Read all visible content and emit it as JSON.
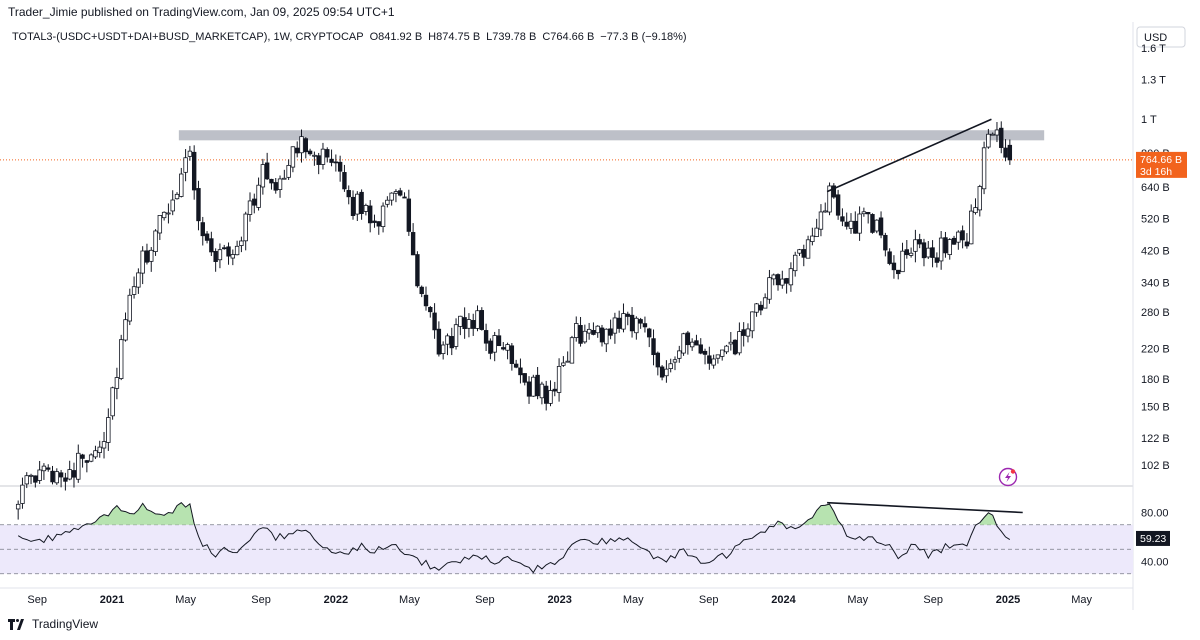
{
  "publisher_line": "Trader_Jimie published on TradingView.com, Jan 09, 2025 09:54 UTC+1",
  "legend": {
    "symbol": "TOTAL3-(USDC+USDT+DAI+BUSD_MARKETCAP), 1W, CRYPTOCAP",
    "o": "O841.92 B",
    "h": "H874.75 B",
    "l": "L739.78 B",
    "c": "C764.66 B",
    "change": "−77.3 B (−9.18%)"
  },
  "currency": "USD",
  "price_tag": {
    "value": "764.66 B",
    "countdown": "3d 16h"
  },
  "rsi_tag": "59.23",
  "footer_brand": "TradingView",
  "colors": {
    "up": "#ffffff",
    "down": "#131722",
    "rsi_line": "#131722",
    "rsi_band": "#ede9fb",
    "ob_fill": "#b7e3b0",
    "price_tag": "#f2631d",
    "resistance": "#b2b5be"
  },
  "icons": [
    "tradingview-logo-icon",
    "lightning-icon"
  ],
  "chart_data": [
    {
      "type": "candlestick",
      "scale": "log",
      "timeframe": "1W",
      "ylim": [
        90,
        1900
      ],
      "y_ticks": [
        "1.6 T",
        "1.3 T",
        "1 T",
        "800 B",
        "640 B",
        "520 B",
        "420 B",
        "340 B",
        "280 B",
        "220 B",
        "180 B",
        "150 B",
        "122 B",
        "102 B"
      ],
      "y_tick_values": [
        1600,
        1300,
        1000,
        800,
        640,
        520,
        420,
        340,
        280,
        220,
        180,
        150,
        122,
        102
      ],
      "x_ticks": [
        "Sep",
        "2021",
        "May",
        "Sep",
        "2022",
        "May",
        "Sep",
        "2023",
        "May",
        "Sep",
        "2024",
        "May",
        "Sep",
        "2025",
        "May"
      ],
      "x_tick_dates": [
        "2020-09-01",
        "2021-01-01",
        "2021-05-01",
        "2021-09-01",
        "2022-01-01",
        "2022-05-01",
        "2022-09-01",
        "2023-01-01",
        "2023-05-01",
        "2023-09-01",
        "2024-01-01",
        "2024-05-01",
        "2024-09-01",
        "2025-01-01",
        "2025-05-01"
      ],
      "anchor_closes": [
        [
          "2020-08-01",
          85
        ],
        [
          "2020-09-10",
          96
        ],
        [
          "2020-11-01",
          100
        ],
        [
          "2020-12-20",
          125
        ],
        [
          "2021-01-15",
          220
        ],
        [
          "2021-02-10",
          360
        ],
        [
          "2021-03-10",
          450
        ],
        [
          "2021-04-10",
          600
        ],
        [
          "2021-05-08",
          830
        ],
        [
          "2021-05-25",
          470
        ],
        [
          "2021-06-20",
          405
        ],
        [
          "2021-07-20",
          420
        ],
        [
          "2021-08-20",
          600
        ],
        [
          "2021-09-05",
          700
        ],
        [
          "2021-09-25",
          660
        ],
        [
          "2021-10-20",
          760
        ],
        [
          "2021-11-10",
          880
        ],
        [
          "2021-12-05",
          790
        ],
        [
          "2021-12-30",
          710
        ],
        [
          "2022-01-25",
          580
        ],
        [
          "2022-02-20",
          545
        ],
        [
          "2022-03-10",
          510
        ],
        [
          "2022-04-01",
          650
        ],
        [
          "2022-04-25",
          550
        ],
        [
          "2022-05-15",
          330
        ],
        [
          "2022-06-20",
          215
        ],
        [
          "2022-07-20",
          250
        ],
        [
          "2022-08-15",
          275
        ],
        [
          "2022-09-10",
          225
        ],
        [
          "2022-10-10",
          220
        ],
        [
          "2022-11-10",
          175
        ],
        [
          "2022-12-20",
          160
        ],
        [
          "2023-01-25",
          245
        ],
        [
          "2023-03-10",
          240
        ],
        [
          "2023-04-15",
          275
        ],
        [
          "2023-05-20",
          250
        ],
        [
          "2023-06-20",
          190
        ],
        [
          "2023-07-20",
          230
        ],
        [
          "2023-08-25",
          205
        ],
        [
          "2023-10-01",
          210
        ],
        [
          "2023-11-05",
          250
        ],
        [
          "2023-12-10",
          330
        ],
        [
          "2024-01-10",
          370
        ],
        [
          "2024-02-10",
          420
        ],
        [
          "2024-03-12",
          610
        ],
        [
          "2024-03-30",
          560
        ],
        [
          "2024-04-15",
          500
        ],
        [
          "2024-05-20",
          510
        ],
        [
          "2024-06-10",
          460
        ],
        [
          "2024-07-05",
          360
        ],
        [
          "2024-07-30",
          455
        ],
        [
          "2024-08-25",
          400
        ],
        [
          "2024-09-20",
          440
        ],
        [
          "2024-10-25",
          450
        ],
        [
          "2024-11-10",
          600
        ],
        [
          "2024-12-03",
          960
        ],
        [
          "2024-12-25",
          780
        ],
        [
          "2025-01-08",
          765
        ]
      ],
      "last_candle": {
        "o": 841.92,
        "h": 874.75,
        "l": 739.78,
        "c": 764.66
      },
      "resistance_zone": {
        "from": "2021-04-20",
        "to": "2025-03-01",
        "y_low": 870,
        "y_high": 930
      },
      "trendline": {
        "from": [
          "2024-03-12",
          620
        ],
        "to": [
          "2024-12-05",
          1000
        ]
      },
      "current_price_line": 764.66
    },
    {
      "type": "line",
      "indicator": "RSI",
      "ylim": [
        20,
        100
      ],
      "y_ticks": [
        "80.00",
        "40.00"
      ],
      "y_tick_values": [
        80,
        40
      ],
      "bands": [
        70,
        50,
        30
      ],
      "series": [
        {
          "values": [
            [
              "2020-08-01",
              62
            ],
            [
              "2020-08-25",
              56
            ],
            [
              "2020-09-15",
              58
            ],
            [
              "2020-10-05",
              60
            ],
            [
              "2020-10-30",
              64
            ],
            [
              "2020-12-05",
              72
            ],
            [
              "2021-01-10",
              85
            ],
            [
              "2021-01-31",
              78
            ],
            [
              "2021-02-20",
              86
            ],
            [
              "2021-03-10",
              78
            ],
            [
              "2021-04-08",
              82
            ],
            [
              "2021-05-08",
              88
            ],
            [
              "2021-05-20",
              60
            ],
            [
              "2021-06-15",
              46
            ],
            [
              "2021-07-10",
              50
            ],
            [
              "2021-07-25",
              48
            ],
            [
              "2021-08-20",
              62
            ],
            [
              "2021-09-05",
              68
            ],
            [
              "2021-09-25",
              60
            ],
            [
              "2021-10-20",
              62
            ],
            [
              "2021-11-10",
              67
            ],
            [
              "2021-12-05",
              52
            ],
            [
              "2022-01-05",
              45
            ],
            [
              "2022-02-10",
              53
            ],
            [
              "2022-03-01",
              49
            ],
            [
              "2022-04-01",
              55
            ],
            [
              "2022-04-20",
              47
            ],
            [
              "2022-05-20",
              40
            ],
            [
              "2022-06-18",
              33
            ],
            [
              "2022-07-20",
              40
            ],
            [
              "2022-08-20",
              46
            ],
            [
              "2022-09-20",
              40
            ],
            [
              "2022-10-15",
              43
            ],
            [
              "2022-11-15",
              33
            ],
            [
              "2022-12-25",
              38
            ],
            [
              "2023-01-25",
              56
            ],
            [
              "2023-03-01",
              55
            ],
            [
              "2023-04-15",
              60
            ],
            [
              "2023-05-25",
              48
            ],
            [
              "2023-06-20",
              38
            ],
            [
              "2023-07-20",
              49
            ],
            [
              "2023-08-25",
              39
            ],
            [
              "2023-10-01",
              45
            ],
            [
              "2023-11-05",
              58
            ],
            [
              "2023-12-20",
              72
            ],
            [
              "2024-01-20",
              66
            ],
            [
              "2024-02-15",
              76
            ],
            [
              "2024-03-12",
              88
            ],
            [
              "2024-03-30",
              72
            ],
            [
              "2024-04-20",
              58
            ],
            [
              "2024-05-20",
              60
            ],
            [
              "2024-06-20",
              55
            ],
            [
              "2024-07-05",
              42
            ],
            [
              "2024-07-30",
              55
            ],
            [
              "2024-08-25",
              44
            ],
            [
              "2024-09-20",
              52
            ],
            [
              "2024-10-25",
              52
            ],
            [
              "2024-11-10",
              68
            ],
            [
              "2024-12-05",
              82
            ],
            [
              "2024-12-20",
              65
            ],
            [
              "2025-01-08",
              59.23
            ]
          ]
        }
      ],
      "divergence_line": {
        "from": [
          "2024-03-12",
          88
        ],
        "to": [
          "2025-01-25",
          80
        ]
      },
      "last_value": 59.23
    }
  ]
}
